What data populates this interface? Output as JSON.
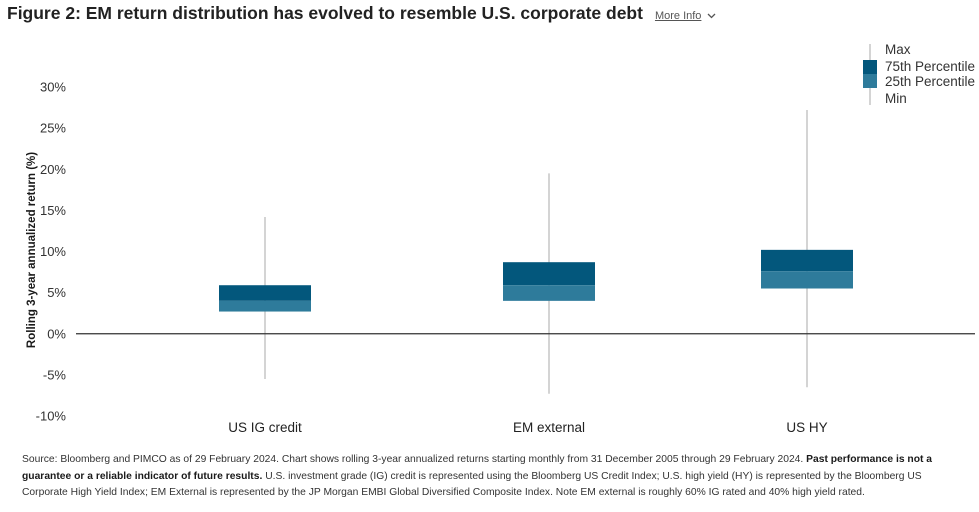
{
  "header": {
    "title": "Figure 2: EM return distribution has evolved to resemble U.S. corporate debt",
    "more_info_label": "More Info",
    "more_info_icon": "chevron-down-icon"
  },
  "chart_data": {
    "type": "box",
    "ylabel": "Rolling 3-year annualized return (%)",
    "ylim": [
      -10,
      30
    ],
    "yticks": [
      -10,
      -5,
      0,
      5,
      10,
      15,
      20,
      25,
      30
    ],
    "ytick_labels": [
      "-10%",
      "-5%",
      "0%",
      "5%",
      "10%",
      "15%",
      "20%",
      "25%",
      "30%"
    ],
    "categories": [
      "US IG credit",
      "EM external",
      "US HY"
    ],
    "boxes": [
      {
        "category": "US IG credit",
        "min": -5.5,
        "p25": 2.7,
        "median": 4.0,
        "p75": 5.9,
        "max": 14.2
      },
      {
        "category": "EM external",
        "min": -7.3,
        "p25": 4.0,
        "median": 5.9,
        "p75": 8.7,
        "max": 19.5
      },
      {
        "category": "US HY",
        "min": -6.5,
        "p25": 5.5,
        "median": 7.6,
        "p75": 10.2,
        "max": 27.2
      }
    ],
    "legend": {
      "position": "top-right",
      "items": [
        "Max",
        "75th Percentile",
        "25th Percentile",
        "Min"
      ]
    },
    "colors": {
      "upper_box": "#03577c",
      "lower_box": "#2e7b9b",
      "whisker": "#aaaaaa",
      "zero_line": "#333333"
    }
  },
  "footnote": {
    "part1": "Source: Bloomberg and PIMCO as of 29 February 2024. Chart shows rolling 3-year annualized returns starting monthly from 31 December 2005 through 29 February 2024. ",
    "bold": "Past performance is not a guarantee or a reliable indicator of future results.",
    "part2": " U.S. investment grade (IG) credit is represented using the Bloomberg US Credit Index; U.S. high yield (HY) is represented by the Bloomberg US Corporate High Yield Index; EM External is represented by the JP Morgan EMBI Global Diversified Composite Index. Note EM external is roughly 60% IG rated and 40% high yield rated."
  }
}
